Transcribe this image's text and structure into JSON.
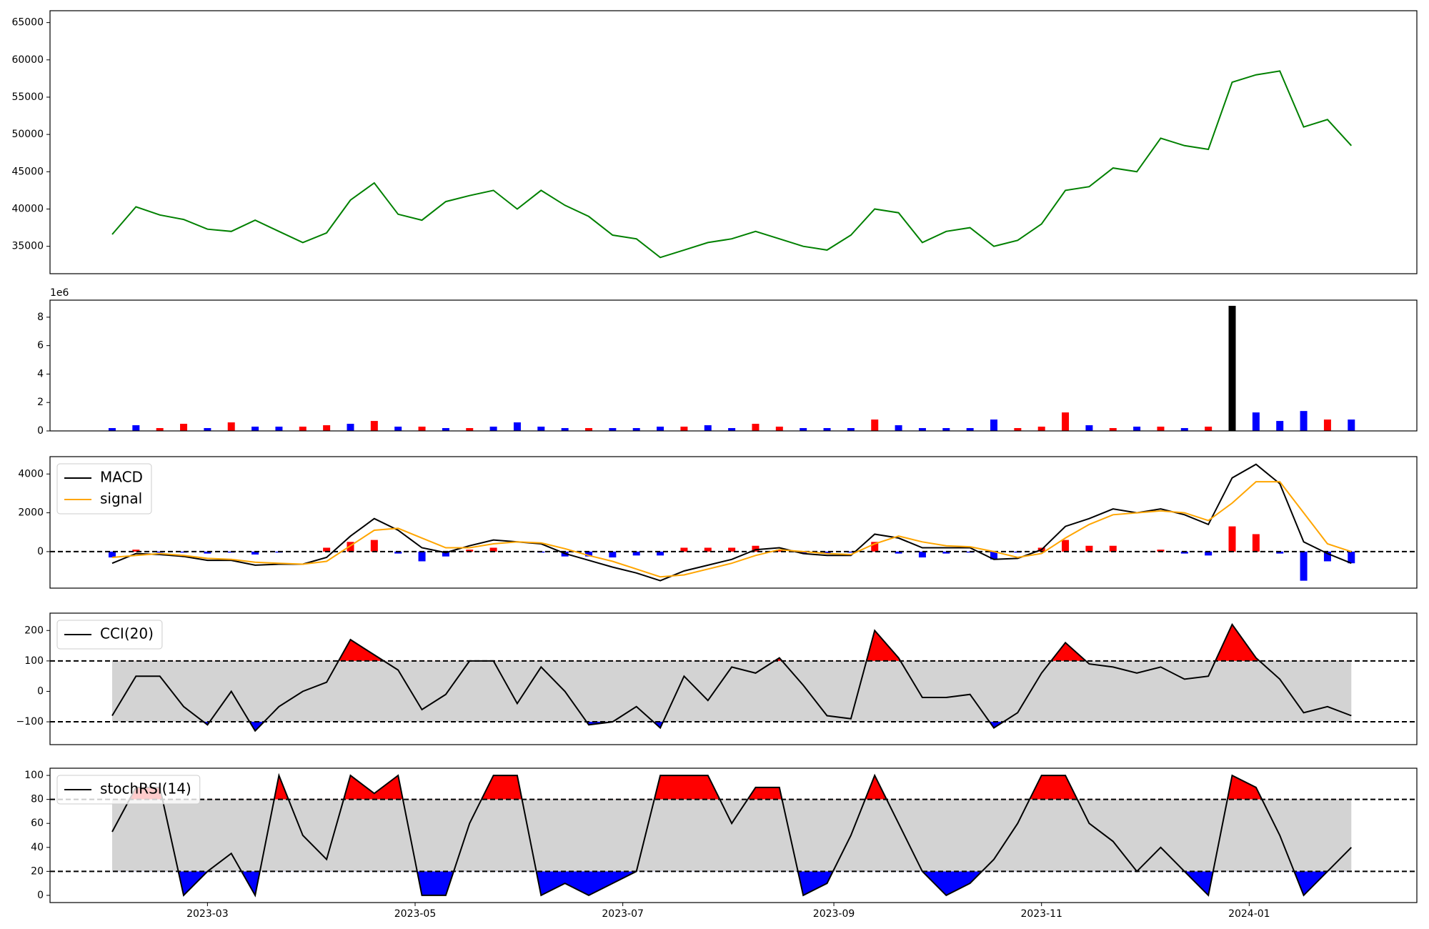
{
  "chart_data": [
    {
      "type": "line",
      "color": "green",
      "x": [
        19389,
        19396,
        19403,
        19410,
        19417,
        19424,
        19431,
        19438,
        19445,
        19452,
        19459,
        19466,
        19473,
        19480,
        19487,
        19494,
        19501,
        19508,
        19515,
        19522,
        19529,
        19536,
        19543,
        19550,
        19557,
        19564,
        19571,
        19578,
        19585,
        19592,
        19599,
        19606,
        19613,
        19620,
        19627,
        19634,
        19641,
        19648,
        19655,
        19662,
        19669,
        19676,
        19683,
        19690,
        19697,
        19704,
        19711,
        19718,
        19725,
        19732,
        19739,
        19746,
        19753
      ],
      "values": [
        36600,
        40300,
        39200,
        38600,
        37300,
        37000,
        38500,
        37000,
        35500,
        36800,
        41200,
        43500,
        39300,
        38500,
        41000,
        41800,
        42500,
        40000,
        42500,
        40500,
        39000,
        36500,
        36000,
        33500,
        34500,
        35500,
        36000,
        37000,
        36000,
        35000,
        34500,
        36500,
        40000,
        39500,
        35500,
        37000,
        37500,
        35000,
        35800,
        38000,
        42500,
        43000,
        45500,
        45000,
        49500,
        48500,
        48000,
        57000,
        58000,
        58500,
        51000,
        52000,
        48500
      ],
      "xlim": [
        19370.75,
        19772.25
      ],
      "ylim": [
        31326,
        66592
      ],
      "yticks": [
        35000,
        40000,
        45000,
        50000,
        55000,
        60000,
        65000
      ]
    },
    {
      "type": "bar",
      "offset_text": "1e6",
      "x": [
        19389,
        19396,
        19403,
        19410,
        19417,
        19424,
        19431,
        19438,
        19445,
        19452,
        19459,
        19466,
        19473,
        19480,
        19487,
        19494,
        19501,
        19508,
        19515,
        19522,
        19529,
        19536,
        19543,
        19550,
        19557,
        19564,
        19571,
        19578,
        19585,
        19592,
        19599,
        19606,
        19613,
        19620,
        19627,
        19634,
        19641,
        19648,
        19655,
        19662,
        19669,
        19676,
        19683,
        19690,
        19697,
        19704,
        19711,
        19718,
        19725,
        19732,
        19739,
        19746,
        19753
      ],
      "values": [
        200000,
        400000,
        200000,
        500000,
        200000,
        600000,
        300000,
        300000,
        300000,
        400000,
        500000,
        700000,
        300000,
        300000,
        200000,
        200000,
        300000,
        600000,
        300000,
        200000,
        200000,
        200000,
        200000,
        300000,
        300000,
        400000,
        200000,
        500000,
        300000,
        200000,
        200000,
        200000,
        800000,
        400000,
        200000,
        200000,
        200000,
        800000,
        200000,
        300000,
        1300000,
        400000,
        200000,
        300000,
        300000,
        200000,
        300000,
        8800000,
        1300000,
        700000,
        1400000,
        800000,
        800000
      ],
      "colors": [
        "blue",
        "blue",
        "red",
        "red",
        "blue",
        "red",
        "blue",
        "blue",
        "red",
        "red",
        "blue",
        "red",
        "blue",
        "red",
        "blue",
        "red",
        "blue",
        "blue",
        "blue",
        "blue",
        "red",
        "blue",
        "blue",
        "blue",
        "red",
        "blue",
        "blue",
        "red",
        "red",
        "blue",
        "blue",
        "blue",
        "red",
        "blue",
        "blue",
        "blue",
        "blue",
        "blue",
        "red",
        "red",
        "red",
        "blue",
        "red",
        "blue",
        "red",
        "blue",
        "red",
        "black",
        "blue",
        "blue",
        "blue",
        "red",
        "blue"
      ],
      "xlim": [
        19370.75,
        19772.25
      ],
      "ylim": [
        0,
        9200000
      ],
      "yticks": [
        0,
        {
          "value": 2000000,
          "label": "2"
        },
        {
          "value": 4000000,
          "label": "4"
        },
        {
          "value": 6000000,
          "label": "6"
        },
        {
          "value": 8000000,
          "label": "8"
        }
      ]
    },
    {
      "type": "macd",
      "legend": "upper left",
      "hlines": [
        0
      ],
      "positive_color": "red",
      "negative_color": "blue",
      "x": [
        19389,
        19396,
        19403,
        19410,
        19417,
        19424,
        19431,
        19438,
        19445,
        19452,
        19459,
        19466,
        19473,
        19480,
        19487,
        19494,
        19501,
        19508,
        19515,
        19522,
        19529,
        19536,
        19543,
        19550,
        19557,
        19564,
        19571,
        19578,
        19585,
        19592,
        19599,
        19606,
        19613,
        19620,
        19627,
        19634,
        19641,
        19648,
        19655,
        19662,
        19669,
        19676,
        19683,
        19690,
        19697,
        19704,
        19711,
        19718,
        19725,
        19732,
        19739,
        19746,
        19753
      ],
      "series": [
        {
          "name": "MACD",
          "color": "black",
          "values": [
            -600,
            -100,
            -150,
            -250,
            -450,
            -450,
            -700,
            -650,
            -650,
            -300,
            800,
            1700,
            1100,
            200,
            -50,
            300,
            600,
            500,
            400,
            -100,
            -450,
            -800,
            -1100,
            -1500,
            -1000,
            -700,
            -400,
            100,
            200,
            -100,
            -200,
            -200,
            900,
            700,
            200,
            200,
            200,
            -400,
            -350,
            100,
            1300,
            1700,
            2200,
            2000,
            2200,
            1900,
            1400,
            3800,
            4500,
            3500,
            500,
            -100,
            -600
          ]
        },
        {
          "name": "signal",
          "color": "orange",
          "values": [
            -300,
            -200,
            -100,
            -200,
            -350,
            -400,
            -550,
            -600,
            -650,
            -500,
            300,
            1100,
            1200,
            700,
            200,
            200,
            400,
            500,
            450,
            150,
            -200,
            -500,
            -900,
            -1300,
            -1200,
            -900,
            -600,
            -200,
            100,
            0,
            -100,
            -150,
            400,
            800,
            500,
            300,
            250,
            0,
            -300,
            -100,
            700,
            1400,
            1900,
            2000,
            2100,
            2000,
            1600,
            2500,
            3600,
            3600,
            2000,
            400,
            0
          ]
        }
      ],
      "histogram": [
        -300,
        100,
        -50,
        -50,
        -100,
        -50,
        -150,
        -50,
        0,
        200,
        500,
        600,
        -100,
        -500,
        -250,
        100,
        200,
        0,
        -50,
        -250,
        -250,
        -300,
        -200,
        -200,
        200,
        200,
        200,
        300,
        100,
        -100,
        -100,
        -50,
        500,
        -100,
        -300,
        -100,
        -50,
        -400,
        -50,
        200,
        600,
        300,
        300,
        0,
        100,
        -100,
        -200,
        1300,
        900,
        -100,
        -1500,
        -500,
        -600
      ],
      "xlim": [
        19370.75,
        19772.25
      ],
      "ylim": [
        -1882,
        4894
      ],
      "yticks": [
        0,
        2000,
        4000
      ]
    },
    {
      "type": "oscillator",
      "legend": "upper left",
      "bands": [
        -100,
        100
      ],
      "band_color": "lightgrey",
      "above_color": "red",
      "below_color": "blue",
      "x": [
        19389,
        19396,
        19403,
        19410,
        19417,
        19424,
        19431,
        19438,
        19445,
        19452,
        19459,
        19466,
        19473,
        19480,
        19487,
        19494,
        19501,
        19508,
        19515,
        19522,
        19529,
        19536,
        19543,
        19550,
        19557,
        19564,
        19571,
        19578,
        19585,
        19592,
        19599,
        19606,
        19613,
        19620,
        19627,
        19634,
        19641,
        19648,
        19655,
        19662,
        19669,
        19676,
        19683,
        19690,
        19697,
        19704,
        19711,
        19718,
        19725,
        19732,
        19739,
        19746,
        19753
      ],
      "series": [
        {
          "name": "CCI(20)",
          "color": "black",
          "values": [
            -80,
            50,
            50,
            -50,
            -110,
            0,
            -130,
            -50,
            0,
            30,
            170,
            120,
            70,
            -60,
            -10,
            100,
            100,
            -40,
            80,
            0,
            -110,
            -100,
            -50,
            -120,
            50,
            -30,
            80,
            60,
            110,
            20,
            -80,
            -90,
            200,
            110,
            -20,
            -20,
            -10,
            -120,
            -70,
            60,
            160,
            90,
            80,
            60,
            80,
            40,
            50,
            220,
            110,
            40,
            -70,
            -50,
            -80
          ]
        }
      ],
      "xlim": [
        19370.75,
        19772.25
      ],
      "ylim": [
        -175,
        257
      ],
      "yticks": [
        {
          "value": -100,
          "label": "−100"
        },
        0,
        100,
        200
      ]
    },
    {
      "type": "oscillator",
      "legend": "upper left",
      "bands": [
        20,
        80
      ],
      "band_color": "lightgrey",
      "above_color": "red",
      "below_color": "blue",
      "x": [
        19389,
        19396,
        19403,
        19410,
        19417,
        19424,
        19431,
        19438,
        19445,
        19452,
        19459,
        19466,
        19473,
        19480,
        19487,
        19494,
        19501,
        19508,
        19515,
        19522,
        19529,
        19536,
        19543,
        19550,
        19557,
        19564,
        19571,
        19578,
        19585,
        19592,
        19599,
        19606,
        19613,
        19620,
        19627,
        19634,
        19641,
        19648,
        19655,
        19662,
        19669,
        19676,
        19683,
        19690,
        19697,
        19704,
        19711,
        19718,
        19725,
        19732,
        19739,
        19746,
        19753
      ],
      "series": [
        {
          "name": "stochRSI(14)",
          "color": "black",
          "values": [
            53,
            90,
            90,
            0,
            20,
            35,
            0,
            100,
            50,
            30,
            100,
            85,
            100,
            0,
            0,
            60,
            100,
            100,
            0,
            10,
            0,
            10,
            20,
            100,
            100,
            100,
            60,
            90,
            90,
            0,
            10,
            50,
            100,
            60,
            20,
            0,
            10,
            30,
            60,
            100,
            100,
            60,
            45,
            20,
            40,
            20,
            0,
            100,
            90,
            50,
            0,
            20,
            40
          ]
        }
      ],
      "xlim": [
        19370.75,
        19772.25
      ],
      "ylim": [
        -6,
        106
      ],
      "yticks": [
        0,
        20,
        40,
        60,
        80,
        100
      ],
      "xticks": [
        {
          "value": 19417,
          "label": "2023-03"
        },
        {
          "value": 19478,
          "label": "2023-05"
        },
        {
          "value": 19539,
          "label": "2023-07"
        },
        {
          "value": 19601,
          "label": "2023-09"
        },
        {
          "value": 19662,
          "label": "2023-11"
        },
        {
          "value": 19723,
          "label": "2024-01"
        }
      ]
    }
  ]
}
